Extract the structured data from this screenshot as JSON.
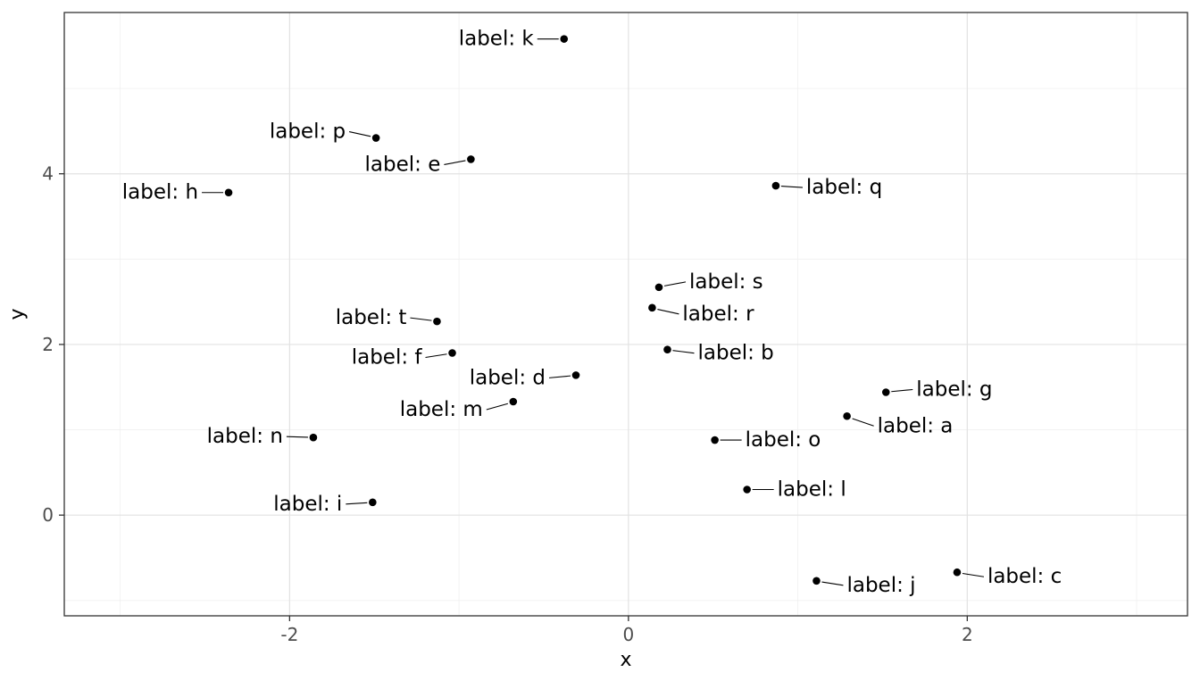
{
  "chart_data": {
    "type": "scatter",
    "title": "",
    "xlabel": "x",
    "ylabel": "y",
    "xlim": [
      -3.33,
      3.3
    ],
    "ylim": [
      -1.18,
      5.89
    ],
    "x_ticks": [
      -2,
      0,
      2
    ],
    "y_ticks": [
      0,
      2,
      4
    ],
    "x_minor_ticks": [
      -3,
      -1,
      1,
      3
    ],
    "y_minor_ticks": [
      -1,
      1,
      3,
      5
    ],
    "grid": "major-and-minor",
    "legend": "none",
    "point_radius": 4.3,
    "points": [
      {
        "label": "label: a",
        "x": 1.29,
        "y": 1.16,
        "side": "right",
        "dy": 11
      },
      {
        "label": "label: b",
        "x": 0.23,
        "y": 1.94,
        "side": "right",
        "dy": 4
      },
      {
        "label": "label: c",
        "x": 1.94,
        "y": -0.67,
        "side": "right",
        "dy": 5
      },
      {
        "label": "label: d",
        "x": -0.31,
        "y": 1.64,
        "side": "left",
        "dy": 3
      },
      {
        "label": "label: e",
        "x": -0.93,
        "y": 4.17,
        "side": "left",
        "dy": 6
      },
      {
        "label": "label: f",
        "x": -1.04,
        "y": 1.9,
        "side": "left",
        "dy": 5
      },
      {
        "label": "label: g",
        "x": 1.52,
        "y": 1.44,
        "side": "right",
        "dy": -3
      },
      {
        "label": "label: h",
        "x": -2.36,
        "y": 3.78,
        "side": "left",
        "dy": 0
      },
      {
        "label": "label: i",
        "x": -1.51,
        "y": 0.15,
        "side": "left",
        "dy": 2
      },
      {
        "label": "label: j",
        "x": 1.11,
        "y": -0.77,
        "side": "right",
        "dy": 5
      },
      {
        "label": "label: k",
        "x": -0.38,
        "y": 5.58,
        "side": "left",
        "dy": 0
      },
      {
        "label": "label: l",
        "x": 0.7,
        "y": 0.3,
        "side": "right",
        "dy": 0
      },
      {
        "label": "label: m",
        "x": -0.68,
        "y": 1.33,
        "side": "left",
        "dy": 9
      },
      {
        "label": "label: n",
        "x": -1.86,
        "y": 0.91,
        "side": "left",
        "dy": -1
      },
      {
        "label": "label: o",
        "x": 0.51,
        "y": 0.88,
        "side": "right",
        "dy": 0
      },
      {
        "label": "label: p",
        "x": -1.49,
        "y": 4.42,
        "side": "left",
        "dy": -7
      },
      {
        "label": "label: q",
        "x": 0.87,
        "y": 3.86,
        "side": "right",
        "dy": 2
      },
      {
        "label": "label: r",
        "x": 0.14,
        "y": 2.43,
        "side": "right",
        "dy": 7
      },
      {
        "label": "label: s",
        "x": 0.18,
        "y": 2.67,
        "side": "right",
        "dy": -6
      },
      {
        "label": "label: t",
        "x": -1.13,
        "y": 2.27,
        "side": "left",
        "dy": -4
      }
    ],
    "colors": {
      "point": "#000000",
      "label_text": "#000000",
      "segment": "#000000",
      "grid_major": "#e2e2e2",
      "grid_minor": "#f0f0f0",
      "panel_border": "#333333",
      "tick_mark": "#333333",
      "tick_label": "#4d4d4d",
      "axis_title": "#000000",
      "background": "#ffffff"
    }
  }
}
